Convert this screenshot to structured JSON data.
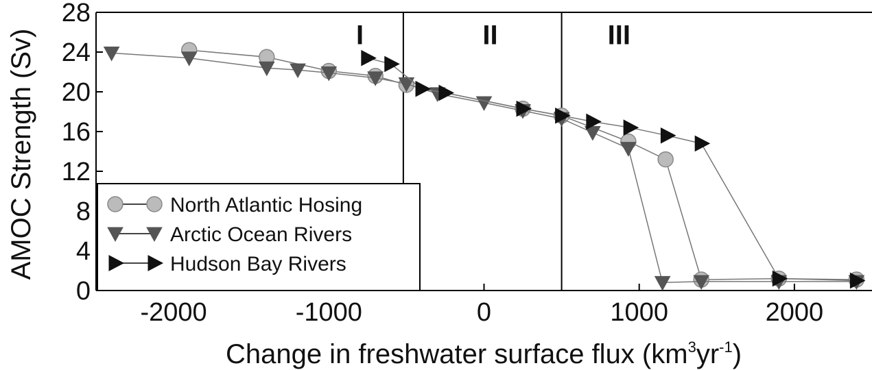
{
  "chart_data": {
    "type": "line",
    "xlabel": {
      "main": "Change in freshwater surface flux (km",
      "sup1": "3",
      "mid": "yr",
      "sup2": "-1",
      "end": ")"
    },
    "ylabel": "AMOC Strength (Sv)",
    "xlim": [
      -2500,
      2500
    ],
    "ylim": [
      0,
      28
    ],
    "xticks": [
      {
        "value": -2000,
        "label": "-2000"
      },
      {
        "value": -1000,
        "label": "-1000"
      },
      {
        "value": 0,
        "label": "0"
      },
      {
        "value": 1000,
        "label": "1000"
      },
      {
        "value": 2000,
        "label": "2000"
      }
    ],
    "yticks": [
      {
        "value": 0,
        "label": "0"
      },
      {
        "value": 4,
        "label": "4"
      },
      {
        "value": 8,
        "label": "8"
      },
      {
        "value": 12,
        "label": "12"
      },
      {
        "value": 16,
        "label": "16"
      },
      {
        "value": 20,
        "label": "20"
      },
      {
        "value": 24,
        "label": "24"
      },
      {
        "value": 28,
        "label": "28"
      }
    ],
    "regions": [
      {
        "label": "I",
        "x": -800,
        "y": 25.5
      },
      {
        "label": "II",
        "x": 40,
        "y": 25.5
      },
      {
        "label": "III",
        "x": 870,
        "y": 25.5
      }
    ],
    "region_boundaries": [
      -520,
      500
    ],
    "legend_position": "lower-left",
    "series": [
      {
        "name": "North Atlantic Hosing",
        "marker": "circle",
        "color": "#bbbbbb",
        "points": [
          [
            -1900,
            24.2
          ],
          [
            -1400,
            23.5
          ],
          [
            -1000,
            22.1
          ],
          [
            -700,
            21.6
          ],
          [
            -500,
            20.7
          ],
          [
            250,
            18.3
          ],
          [
            500,
            17.6
          ],
          [
            930,
            15.0
          ],
          [
            1170,
            13.2
          ],
          [
            1400,
            1.1
          ],
          [
            1900,
            1.2
          ],
          [
            2400,
            1.1
          ]
        ]
      },
      {
        "name": "Arctic Ocean Rivers",
        "marker": "triangle-down",
        "color": "#555555",
        "points": [
          [
            -2400,
            23.9
          ],
          [
            -1900,
            23.4
          ],
          [
            -1400,
            22.4
          ],
          [
            -1200,
            22.2
          ],
          [
            -1000,
            21.9
          ],
          [
            -700,
            21.4
          ],
          [
            -500,
            20.8
          ],
          [
            -300,
            19.8
          ],
          [
            0,
            18.9
          ],
          [
            250,
            18.1
          ],
          [
            500,
            17.3
          ],
          [
            700,
            15.9
          ],
          [
            930,
            14.3
          ],
          [
            1150,
            0.8
          ],
          [
            1400,
            0.9
          ],
          [
            1900,
            0.9
          ],
          [
            2400,
            0.9
          ]
        ]
      },
      {
        "name": "Hudson Bay Rivers",
        "marker": "triangle-right",
        "color": "#111111",
        "points": [
          [
            -750,
            23.4
          ],
          [
            -600,
            22.8
          ],
          [
            -400,
            20.3
          ],
          [
            -250,
            19.9
          ],
          [
            250,
            18.3
          ],
          [
            500,
            17.6
          ],
          [
            700,
            17.0
          ],
          [
            940,
            16.4
          ],
          [
            1180,
            15.6
          ],
          [
            1400,
            14.8
          ],
          [
            1900,
            1.2
          ],
          [
            2400,
            1.0
          ]
        ]
      }
    ]
  }
}
